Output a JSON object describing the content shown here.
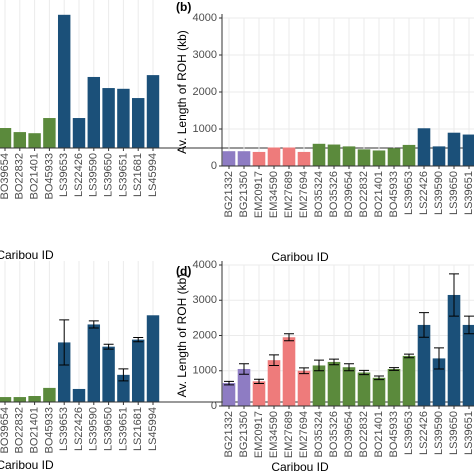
{
  "chart_data": [
    {
      "type": "bar",
      "x_label": "Caribou ID",
      "categories": [
        "BO39654",
        "BO22832",
        "BO21401",
        "BO45933",
        "LS39653",
        "LS22426",
        "LS39590",
        "LS39650",
        "LS39651",
        "LS21681",
        "LS45994"
      ],
      "values": [
        540,
        430,
        400,
        810,
        3600,
        810,
        1920,
        1620,
        1600,
        1350,
        1970
      ],
      "colors": [
        "#5b8a3c",
        "#5b8a3c",
        "#5b8a3c",
        "#5b8a3c",
        "#1b5079",
        "#1b5079",
        "#1b5079",
        "#1b5079",
        "#1b5079",
        "#1b5079",
        "#1b5079"
      ],
      "ylim": [
        0,
        4000
      ],
      "grid": true
    },
    {
      "type": "bar",
      "title": "(b)",
      "x_label": "Caribou ID",
      "y_label": "Av. Length of ROH (kb)",
      "categories": [
        "BG21332",
        "BG21350",
        "EM20917",
        "EM34590",
        "EM27689",
        "EM27694",
        "BO35324",
        "BO35326",
        "BO39654",
        "BO22832",
        "BO21401",
        "BO45933",
        "LS39653",
        "LS22426",
        "LS39590",
        "LS39650",
        "LS39651"
      ],
      "values": [
        400,
        400,
        380,
        500,
        500,
        380,
        600,
        580,
        530,
        450,
        420,
        480,
        570,
        1020,
        530,
        900,
        850
      ],
      "colors": [
        "#8e7cc3",
        "#8e7cc3",
        "#ee7b7b",
        "#ee7b7b",
        "#ee7b7b",
        "#ee7b7b",
        "#5b8a3c",
        "#5b8a3c",
        "#5b8a3c",
        "#5b8a3c",
        "#5b8a3c",
        "#5b8a3c",
        "#5b8a3c",
        "#1b5079",
        "#1b5079",
        "#1b5079",
        "#1b5079"
      ],
      "ylim": [
        0,
        4000
      ],
      "yticks": [
        0,
        1000,
        2000,
        3000,
        4000
      ],
      "grid": true
    },
    {
      "type": "bar",
      "x_label": "Caribou ID",
      "categories": [
        "BO39654",
        "BO22832",
        "BO21401",
        "BO45933",
        "LS39653",
        "LS22426",
        "LS39590",
        "LS39650",
        "LS39651",
        "LS21681",
        "LS45994"
      ],
      "values": [
        140,
        140,
        170,
        400,
        1690,
        370,
        2200,
        1570,
        770,
        1770,
        2460
      ],
      "errors": [
        0,
        0,
        0,
        0,
        640,
        0,
        100,
        70,
        170,
        60,
        0
      ],
      "colors": [
        "#5b8a3c",
        "#5b8a3c",
        "#5b8a3c",
        "#5b8a3c",
        "#1b5079",
        "#1b5079",
        "#1b5079",
        "#1b5079",
        "#1b5079",
        "#1b5079",
        "#1b5079"
      ],
      "ylim": [
        0,
        4000
      ],
      "grid": true
    },
    {
      "type": "bar",
      "title": "(d)",
      "x_label": "Caribou ID",
      "y_label": "Av. Length of ROH (kb)",
      "categories": [
        "BG21332",
        "BG21350",
        "EM20917",
        "EM34590",
        "EM27689",
        "EM27694",
        "BO35324",
        "BO35326",
        "BO39654",
        "BO22832",
        "BO21401",
        "BO45933",
        "LS39653",
        "LS22426",
        "LS39590",
        "LS39650",
        "LS39651"
      ],
      "values": [
        650,
        1050,
        700,
        1300,
        1950,
        1000,
        1150,
        1250,
        1100,
        950,
        800,
        1050,
        1420,
        2300,
        1350,
        3150,
        2300
      ],
      "errors": [
        50,
        150,
        60,
        150,
        100,
        80,
        150,
        80,
        100,
        60,
        50,
        40,
        50,
        350,
        300,
        600,
        250
      ],
      "colors": [
        "#8e7cc3",
        "#8e7cc3",
        "#ee7b7b",
        "#ee7b7b",
        "#ee7b7b",
        "#ee7b7b",
        "#5b8a3c",
        "#5b8a3c",
        "#5b8a3c",
        "#5b8a3c",
        "#5b8a3c",
        "#5b8a3c",
        "#5b8a3c",
        "#1b5079",
        "#1b5079",
        "#1b5079",
        "#1b5079"
      ],
      "ylim": [
        0,
        4000
      ],
      "yticks": [
        0,
        1000,
        2000,
        3000,
        4000
      ],
      "grid": true
    }
  ]
}
